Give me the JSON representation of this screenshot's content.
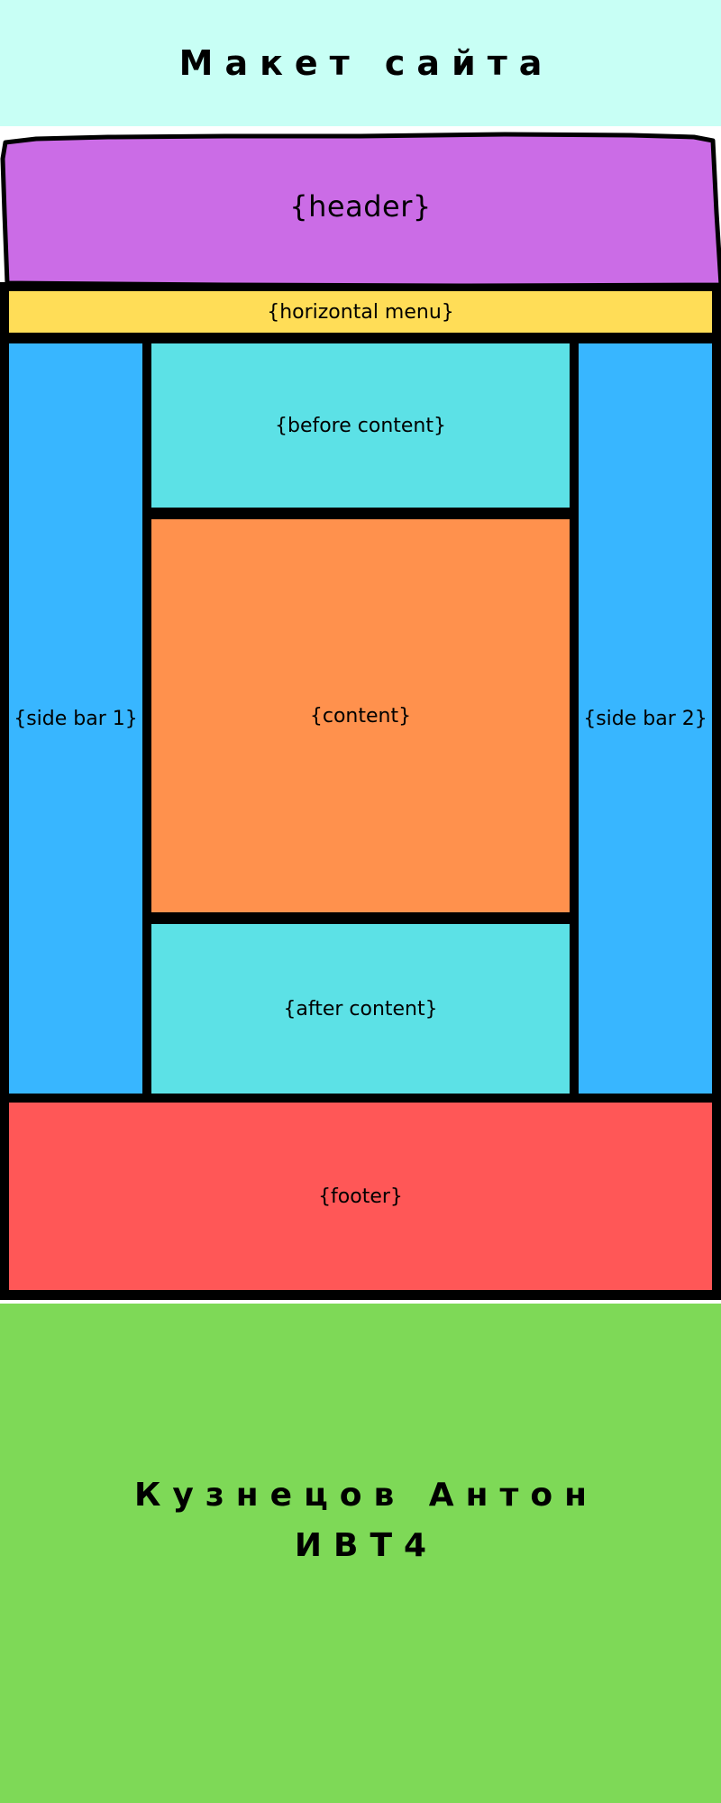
{
  "page_title": "Макет сайта",
  "layout": {
    "header": "{header}",
    "horizontal_menu": "{horizontal menu}",
    "side_bar_1": "{side bar 1}",
    "side_bar_2": "{side bar 2}",
    "before_content": "{before content}",
    "content": "{content}",
    "after_content": "{after content}",
    "footer": "{footer}"
  },
  "author": {
    "name": "Кузнецов Антон",
    "group": "ИВТ4"
  },
  "colors": {
    "top_banner": "#c8fff5",
    "header": "#cb6ce6",
    "horizontal_menu": "#ffdd57",
    "side_bars": "#38b6ff",
    "before_after_content": "#5ce1e6",
    "content": "#ff914d",
    "footer": "#ff5757",
    "bottom_banner": "#7ed957",
    "borders": "#000000"
  }
}
